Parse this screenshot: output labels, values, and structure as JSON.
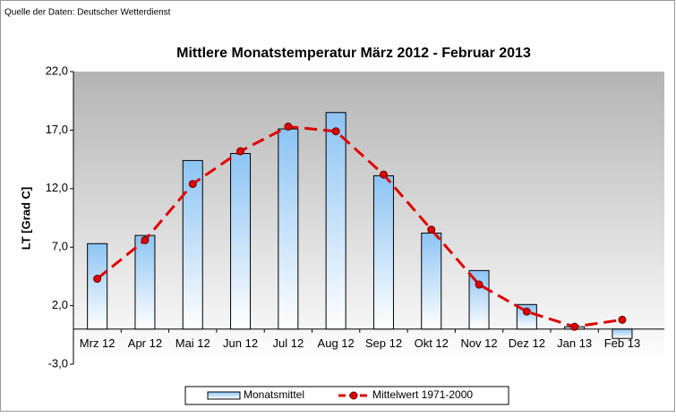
{
  "chart_data": {
    "type": "bar",
    "source": "Quelle der Daten: Deutscher Wetterdienst",
    "title": "Mittlere Monatstemperatur März 2012 - Februar 2013",
    "y_label": "LT [Grad C]",
    "categories": [
      "Mrz 12",
      "Apr 12",
      "Mai 12",
      "Jun 12",
      "Jul 12",
      "Aug 12",
      "Sep 12",
      "Okt 12",
      "Nov 12",
      "Dez 12",
      "Jan 13",
      "Feb 13"
    ],
    "series": [
      {
        "name": "Monatsmittel",
        "type": "bar",
        "color": "#8cc4f4",
        "values": [
          7.3,
          8.0,
          14.4,
          15.0,
          17.1,
          18.5,
          13.1,
          8.2,
          5.0,
          2.1,
          0.2,
          -0.8
        ]
      },
      {
        "name": "Mittelwert 1971-2000",
        "type": "line",
        "color": "#e00000",
        "values": [
          4.3,
          7.6,
          12.4,
          15.2,
          17.3,
          16.9,
          13.2,
          8.5,
          3.8,
          1.5,
          0.2,
          0.8
        ]
      }
    ],
    "ylim": [
      -3,
      22
    ],
    "yticks": [
      {
        "value": 22,
        "label": "22,0"
      },
      {
        "value": 17,
        "label": "17,0"
      },
      {
        "value": 12,
        "label": "12,0"
      },
      {
        "value": 7,
        "label": "7,0"
      },
      {
        "value": 2,
        "label": "2,0"
      },
      {
        "value": -3,
        "label": "-3,0"
      }
    ],
    "legend": "bottom"
  }
}
